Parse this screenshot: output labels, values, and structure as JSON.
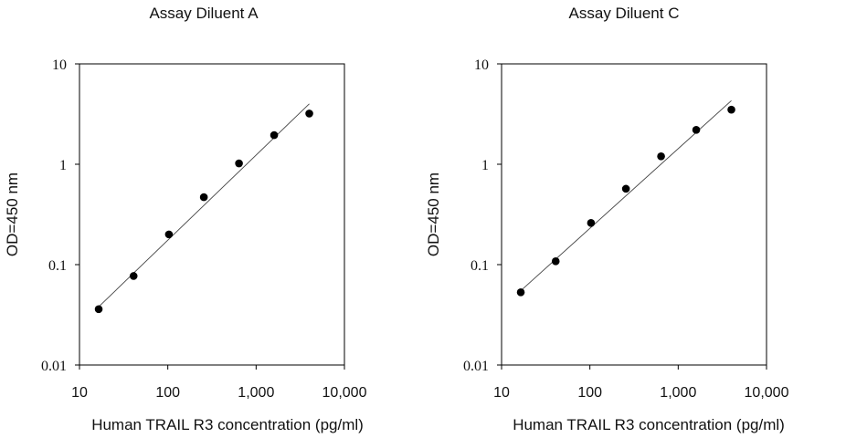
{
  "chart_data": [
    {
      "type": "scatter",
      "title": "Assay Diluent A",
      "xlabel": "Human TRAIL R3 concentration (pg/ml)",
      "ylabel": "OD=450 nm",
      "x_scale": "log",
      "y_scale": "log",
      "xlim": [
        10,
        10000
      ],
      "ylim": [
        0.01,
        10
      ],
      "x_ticks": [
        {
          "value": 10,
          "label": "10"
        },
        {
          "value": 100,
          "label": "100"
        },
        {
          "value": 1000,
          "label": "1,000"
        },
        {
          "value": 10000,
          "label": "10,000"
        }
      ],
      "y_ticks": [
        {
          "value": 10,
          "label": "10"
        },
        {
          "value": 1,
          "label": "1"
        },
        {
          "value": 0.1,
          "label": "0.1"
        },
        {
          "value": 0.01,
          "label": "0.01"
        }
      ],
      "grid": false,
      "points": [
        {
          "x": 16.5,
          "y": 0.036
        },
        {
          "x": 41,
          "y": 0.077
        },
        {
          "x": 103,
          "y": 0.2
        },
        {
          "x": 256,
          "y": 0.47
        },
        {
          "x": 640,
          "y": 1.02
        },
        {
          "x": 1600,
          "y": 1.95
        },
        {
          "x": 4000,
          "y": 3.2
        }
      ],
      "fit_line": {
        "x": [
          16.5,
          4000
        ],
        "y": [
          0.038,
          4.0
        ]
      }
    },
    {
      "type": "scatter",
      "title": "Assay Diluent C",
      "xlabel": "Human TRAIL R3 concentration (pg/ml)",
      "ylabel": "OD=450 nm",
      "x_scale": "log",
      "y_scale": "log",
      "xlim": [
        10,
        10000
      ],
      "ylim": [
        0.01,
        10
      ],
      "x_ticks": [
        {
          "value": 10,
          "label": "10"
        },
        {
          "value": 100,
          "label": "100"
        },
        {
          "value": 1000,
          "label": "1,000"
        },
        {
          "value": 10000,
          "label": "10,000"
        }
      ],
      "y_ticks": [
        {
          "value": 10,
          "label": "10"
        },
        {
          "value": 1,
          "label": "1"
        },
        {
          "value": 0.1,
          "label": "0.1"
        },
        {
          "value": 0.01,
          "label": "0.01"
        }
      ],
      "grid": false,
      "points": [
        {
          "x": 16.5,
          "y": 0.053
        },
        {
          "x": 41,
          "y": 0.108
        },
        {
          "x": 103,
          "y": 0.26
        },
        {
          "x": 256,
          "y": 0.57
        },
        {
          "x": 640,
          "y": 1.2
        },
        {
          "x": 1600,
          "y": 2.2
        },
        {
          "x": 4000,
          "y": 3.5
        }
      ],
      "fit_line": {
        "x": [
          16.5,
          4000
        ],
        "y": [
          0.055,
          4.3
        ]
      }
    }
  ]
}
